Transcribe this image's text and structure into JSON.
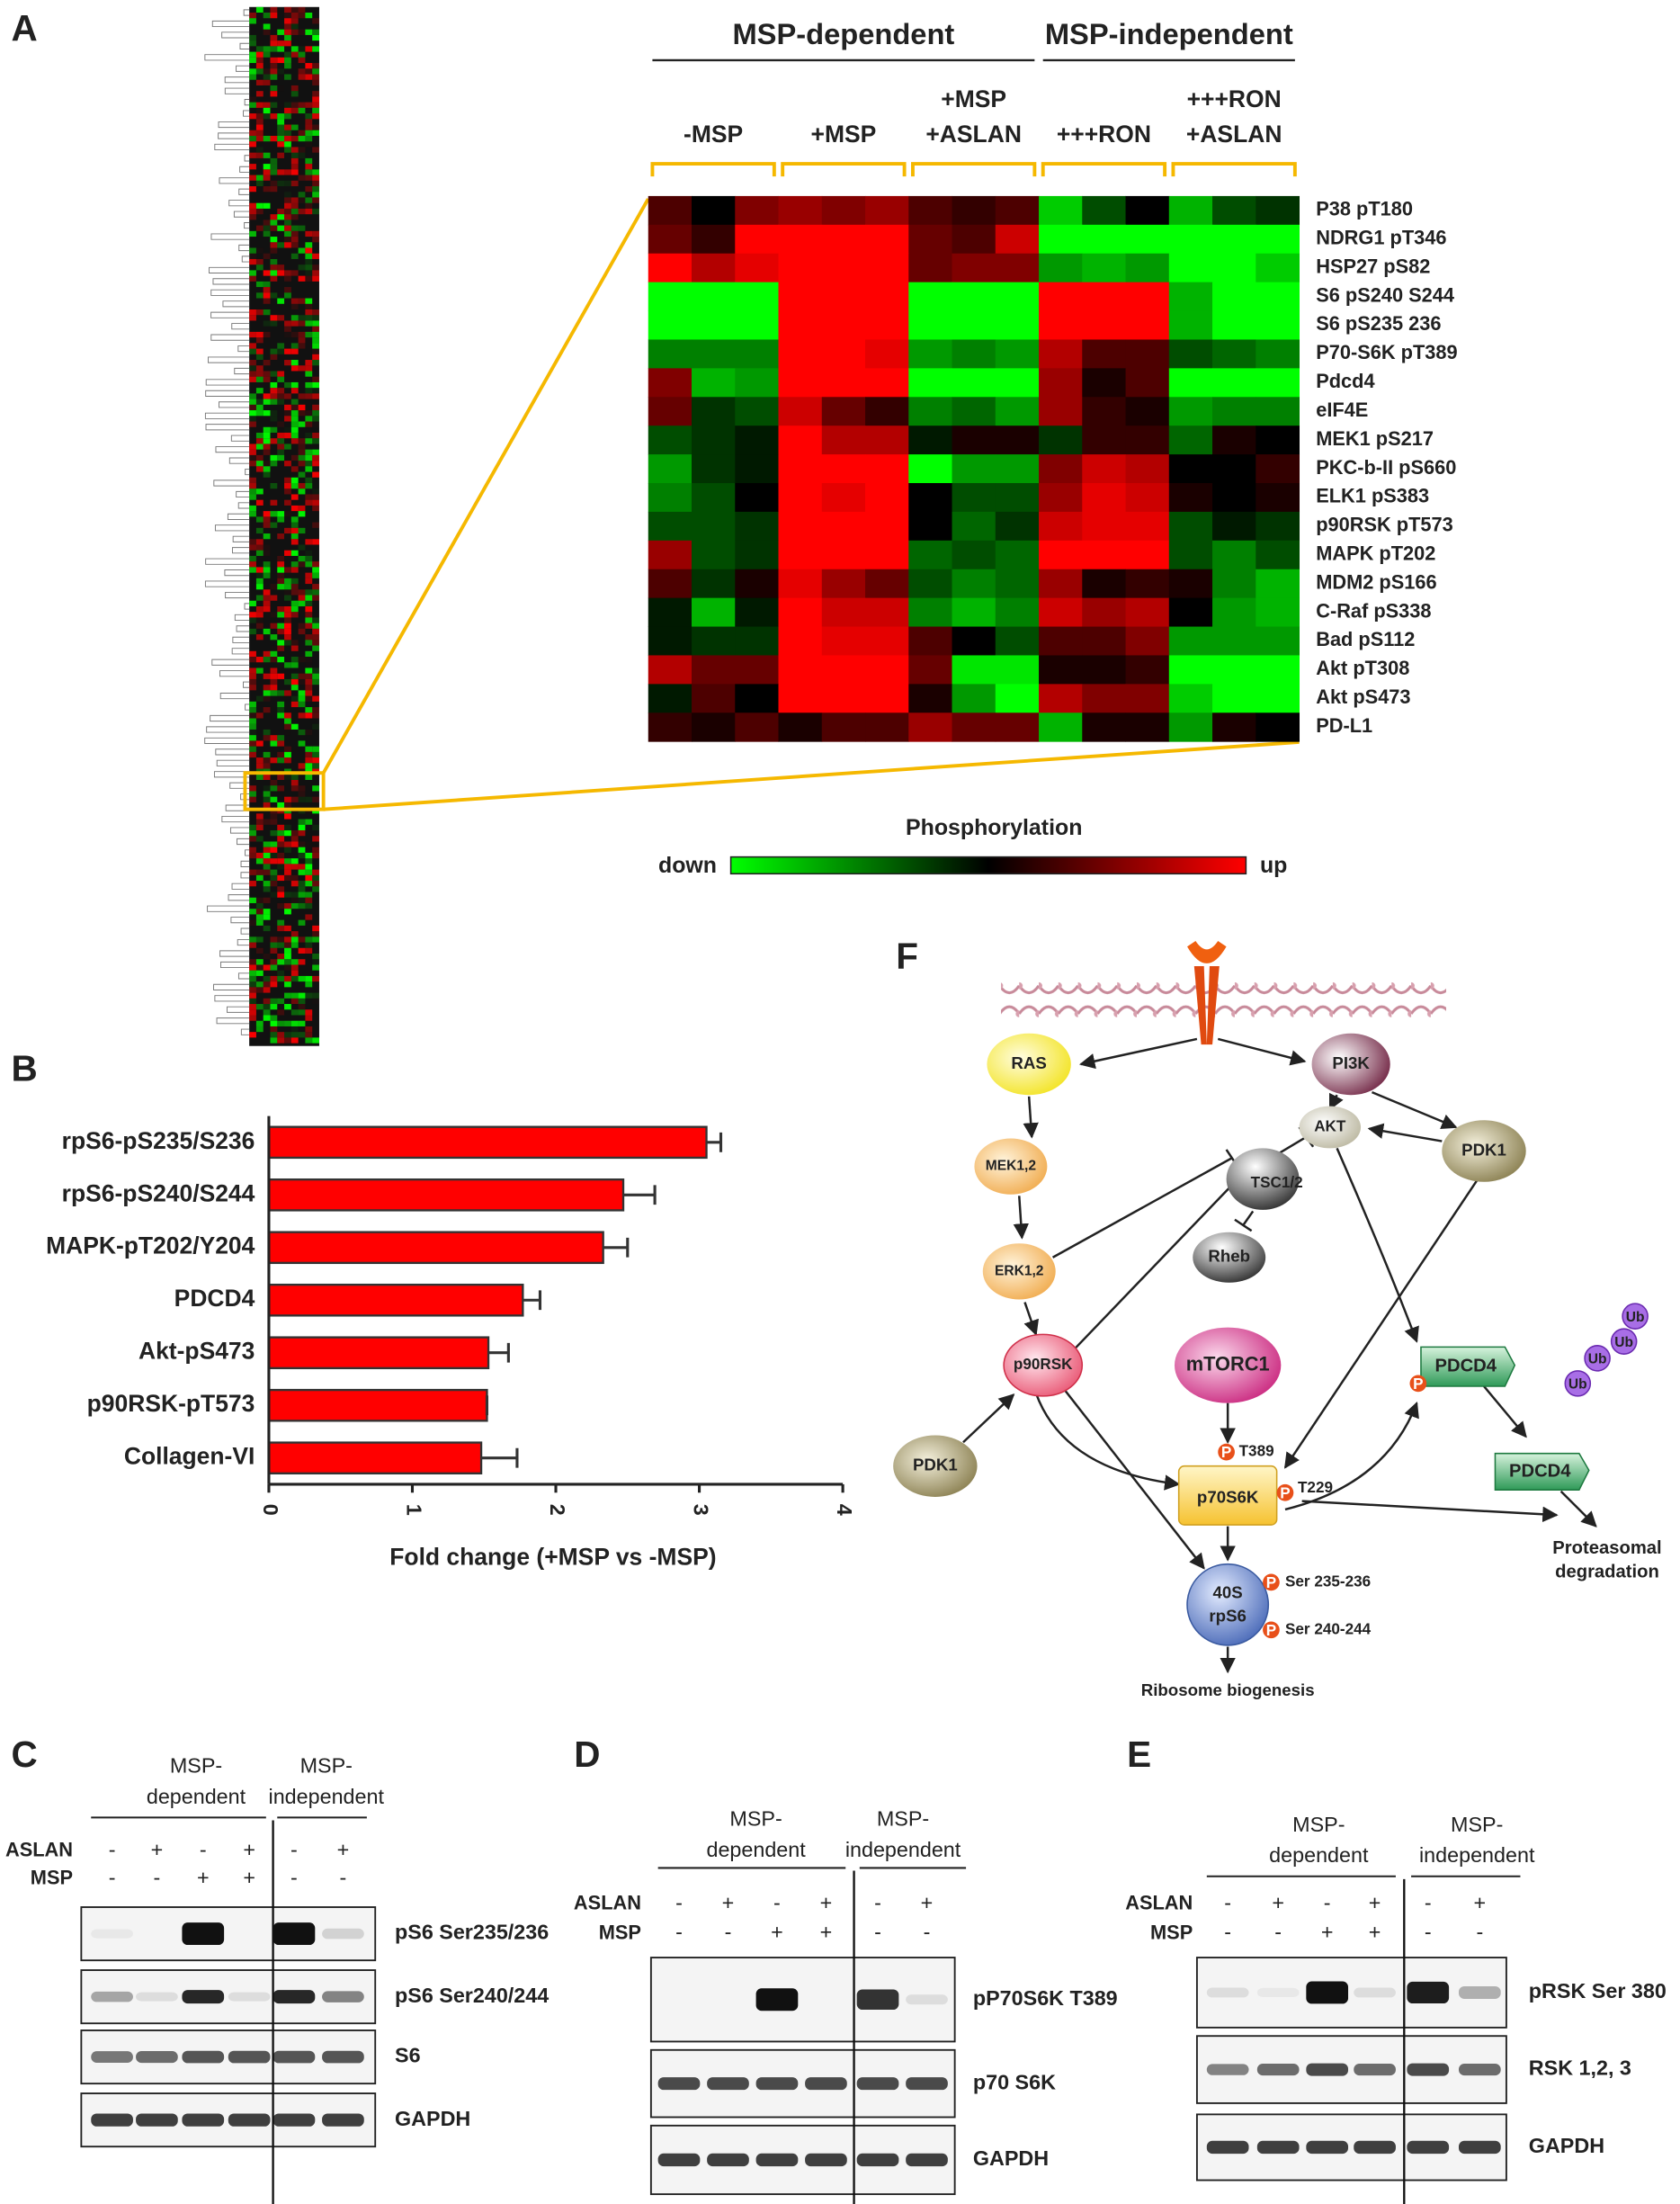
{
  "panel_labels": [
    "A",
    "B",
    "C",
    "D",
    "E",
    "F"
  ],
  "chart_data": [
    {
      "type": "heatmap",
      "group_headers": [
        "MSP-dependent",
        "MSP-independent"
      ],
      "columns": [
        [
          "-MSP"
        ],
        [
          "+MSP"
        ],
        [
          "+MSP",
          "+ASLAN"
        ],
        [
          "+++RON"
        ],
        [
          "+++RON",
          "+ASLAN"
        ]
      ],
      "replicates": 3,
      "rows": [
        "P38 pT180",
        "NDRG1 pT346",
        "HSP27 pS82",
        "S6 pS240 S244",
        "S6 pS235 236",
        "P70-S6K pT389",
        "Pdcd4",
        "eIF4E",
        "MEK1 pS217",
        "PKC-b-II pS660",
        "ELK1 pS383",
        "p90RSK pT573",
        "MAPK pT202",
        "MDM2 pS166",
        "C-Raf pS338",
        "Bad pS112",
        "Akt pT308",
        "Akt pS473",
        "PD-L1"
      ],
      "values": [
        [
          0.3,
          0,
          0.5,
          0.6,
          0.5,
          0.6,
          0.3,
          0.2,
          0.3,
          -0.8,
          -0.3,
          0,
          -0.7,
          -0.3,
          -0.2
        ],
        [
          0.4,
          0.2,
          1,
          1,
          1,
          1,
          0.4,
          0.3,
          0.8,
          -1,
          -1,
          -1,
          -1,
          -1,
          -1
        ],
        [
          1,
          0.7,
          0.9,
          1,
          1,
          1,
          0.4,
          0.5,
          0.5,
          -0.6,
          -0.7,
          -0.6,
          -1,
          -1,
          -0.8
        ],
        [
          -1,
          -1,
          -1,
          1,
          1,
          1,
          -1,
          -1,
          -1,
          1,
          1,
          1,
          -0.7,
          -1,
          -1
        ],
        [
          -1,
          -1,
          -1,
          1,
          1,
          1,
          -1,
          -1,
          -1,
          1,
          1,
          1,
          -0.7,
          -1,
          -1
        ],
        [
          -0.5,
          -0.5,
          -0.5,
          1,
          1,
          0.9,
          -0.6,
          -0.5,
          -0.6,
          0.7,
          0.3,
          0.3,
          -0.3,
          -0.4,
          -0.5
        ],
        [
          0.5,
          -0.7,
          -0.6,
          1,
          1,
          1,
          -1,
          -1,
          -1,
          0.6,
          0.1,
          0.3,
          -1,
          -1,
          -1
        ],
        [
          0.4,
          -0.2,
          -0.3,
          0.8,
          0.4,
          0.2,
          -0.5,
          -0.4,
          -0.6,
          0.6,
          0.2,
          0.1,
          -0.6,
          -0.5,
          -0.5
        ],
        [
          -0.3,
          -0.2,
          -0.1,
          1,
          0.7,
          0.7,
          -0.1,
          0.1,
          0.1,
          -0.2,
          0.2,
          0.2,
          -0.4,
          0.1,
          0
        ],
        [
          -0.6,
          -0.2,
          -0.1,
          1,
          1,
          1,
          -1,
          -0.6,
          -0.6,
          0.5,
          0.8,
          0.7,
          0,
          0,
          0.2
        ],
        [
          -0.5,
          -0.3,
          0,
          1,
          0.9,
          1,
          0,
          -0.3,
          -0.3,
          0.6,
          0.9,
          0.8,
          0.1,
          0,
          0.1
        ],
        [
          -0.3,
          -0.3,
          -0.2,
          1,
          1,
          1,
          0,
          -0.4,
          -0.2,
          0.8,
          0.9,
          0.9,
          -0.3,
          -0.1,
          -0.2
        ],
        [
          0.6,
          -0.3,
          -0.2,
          1,
          1,
          1,
          -0.4,
          -0.3,
          -0.4,
          1,
          1,
          1,
          -0.3,
          -0.5,
          -0.3
        ],
        [
          0.3,
          -0.2,
          0.1,
          0.9,
          0.6,
          0.4,
          -0.3,
          -0.5,
          -0.4,
          0.6,
          0.1,
          0.2,
          0.1,
          -0.5,
          -0.7
        ],
        [
          -0.1,
          -0.7,
          -0.1,
          1,
          0.8,
          0.8,
          -0.5,
          -0.7,
          -0.5,
          0.8,
          0.6,
          0.7,
          0,
          -0.6,
          -0.7
        ],
        [
          -0.1,
          -0.2,
          -0.2,
          1,
          0.9,
          0.9,
          0.3,
          0,
          -0.3,
          0.3,
          0.3,
          0.5,
          -0.6,
          -0.6,
          -0.6
        ],
        [
          0.7,
          0.4,
          0.4,
          1,
          1,
          1,
          0.4,
          -0.9,
          -0.9,
          0.1,
          0.1,
          0.2,
          -1,
          -1,
          -1
        ],
        [
          -0.1,
          0.3,
          0,
          1,
          1,
          1,
          0.1,
          -0.6,
          -1,
          0.7,
          0.5,
          0.5,
          -0.8,
          -1,
          -1
        ],
        [
          0.2,
          0.1,
          0.3,
          0.1,
          0.3,
          0.3,
          0.6,
          0.4,
          0.4,
          -0.7,
          0.1,
          0.1,
          -0.6,
          0.1,
          0
        ]
      ],
      "zlim": [
        -1,
        1
      ],
      "colors": {
        "low": "#00ff00",
        "mid": "#000000",
        "high": "#ff0000"
      },
      "legend_title": "Phosphorylation",
      "legend_low": "down",
      "legend_high": "up"
    },
    {
      "type": "bar",
      "orientation": "horizontal",
      "categories": [
        "rpS6-pS235/S236",
        "rpS6-pS240/S244",
        "MAPK-pT202/Y204",
        "PDCD4",
        "Akt-pS473",
        "p90RSK-pT573",
        "Collagen-VI"
      ],
      "values": [
        3.05,
        2.47,
        2.33,
        1.77,
        1.53,
        1.52,
        1.48
      ],
      "errors": [
        0.1,
        0.22,
        0.17,
        0.12,
        0.14,
        0,
        0.25
      ],
      "color": "#ff0000",
      "xlabel": "Fold change (+MSP vs -MSP)",
      "xlim": [
        0,
        4
      ],
      "xticks": [
        0,
        1,
        2,
        3,
        4
      ]
    }
  ],
  "pathway": {
    "nodes": [
      "RAS",
      "PI3K",
      "AKT",
      "PDK1",
      "MEK1,2",
      "TSC1/2",
      "ERK1,2",
      "Rheb",
      "p90RSK",
      "mTORC1",
      "PDCD4",
      "PDCD4",
      "PDK1",
      "p70S6K",
      [
        "40S",
        "rpS6"
      ]
    ],
    "phospho": "P",
    "ubiquitin": "Ub",
    "sites": [
      "T389",
      "T229",
      "Ser 235-236",
      "Ser 240-244"
    ],
    "outputs": [
      "Ribosome biogenesis",
      [
        "Proteasomal",
        "degradation"
      ]
    ]
  },
  "blots": [
    {
      "groups": [
        [
          "MSP-",
          "dependent"
        ],
        [
          "MSP-",
          "independent"
        ]
      ],
      "treatments": [
        {
          "name": "ASLAN",
          "signs": [
            "-",
            "+",
            "-",
            "+",
            "-",
            "+"
          ]
        },
        {
          "name": "MSP",
          "signs": [
            "-",
            "-",
            "+",
            "+",
            "-",
            "-"
          ]
        }
      ],
      "rows": [
        "pS6 Ser235/236",
        "pS6 Ser240/244",
        "S6",
        "GAPDH"
      ]
    },
    {
      "groups": [
        [
          "MSP-",
          "dependent"
        ],
        [
          "MSP-",
          "independent"
        ]
      ],
      "treatments": [
        {
          "name": "ASLAN",
          "signs": [
            "-",
            "+",
            "-",
            "+",
            "-",
            "+"
          ]
        },
        {
          "name": "MSP",
          "signs": [
            "-",
            "-",
            "+",
            "+",
            "-",
            "-"
          ]
        }
      ],
      "rows": [
        "pP70S6K T389",
        "p70 S6K",
        "GAPDH"
      ]
    },
    {
      "groups": [
        [
          "MSP-",
          "dependent"
        ],
        [
          "MSP-",
          "independent"
        ]
      ],
      "treatments": [
        {
          "name": "ASLAN",
          "signs": [
            "-",
            "+",
            "-",
            "+",
            "-",
            "+"
          ]
        },
        {
          "name": "MSP",
          "signs": [
            "-",
            "-",
            "+",
            "+",
            "-",
            "-"
          ]
        }
      ],
      "rows": [
        "pRSK Ser 380",
        "RSK 1,2, 3",
        "GAPDH"
      ]
    }
  ]
}
